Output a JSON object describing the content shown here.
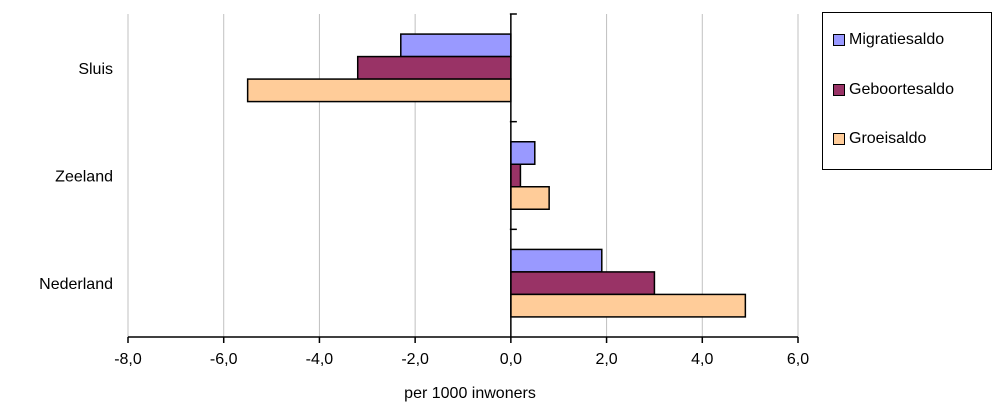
{
  "chart_data": {
    "type": "bar",
    "orientation": "horizontal",
    "categories": [
      "Sluis",
      "Zeeland",
      "Nederland"
    ],
    "series": [
      {
        "name": "Migratiesaldo",
        "color": "#9999ff",
        "values": [
          -2.3,
          0.5,
          1.9
        ]
      },
      {
        "name": "Geboortesaldo",
        "color": "#993366",
        "values": [
          -3.2,
          0.2,
          3.0
        ]
      },
      {
        "name": "Groeisaldo",
        "color": "#ffcc99",
        "values": [
          -5.5,
          0.8,
          4.9
        ]
      }
    ],
    "xlabel": "per 1000 inwoners",
    "xlim": [
      -8,
      6
    ],
    "xticks": [
      -8,
      -6,
      -4,
      -2,
      0,
      2,
      4,
      6
    ],
    "xtick_labels": [
      "-8,0",
      "-6,0",
      "-4,0",
      "-2,0",
      "0,0",
      "2,0",
      "4,0",
      "6,0"
    ],
    "grid": "vertical",
    "legend_position": "right"
  }
}
